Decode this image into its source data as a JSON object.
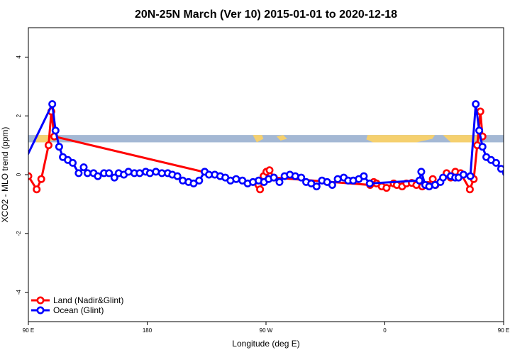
{
  "chart_data": {
    "type": "line",
    "title": "20N-25N March (Ver 10)   2015-01-01 to 2020-12-18",
    "xlabel": "Longitude (deg E)",
    "ylabel": "XCO2 - MLO trend (ppm)",
    "xlim": [
      90,
      450
    ],
    "ylim": [
      -5,
      5
    ],
    "x_ticks": [
      {
        "value": 90,
        "label": "90 E"
      },
      {
        "value": 180,
        "label": "180"
      },
      {
        "value": 270,
        "label": "90 W"
      },
      {
        "value": 360,
        "label": "0"
      },
      {
        "value": 450,
        "label": "90 E"
      },
      {
        "value": 540,
        "label": "180"
      }
    ],
    "y_ticks": [
      {
        "value": -4,
        "label": "-4"
      },
      {
        "value": -2,
        "label": "-2"
      },
      {
        "value": 0,
        "label": "0"
      },
      {
        "value": 2,
        "label": "2"
      },
      {
        "value": 4,
        "label": "4"
      }
    ],
    "legend_position": "bottom-left",
    "map_strip": {
      "y_range": [
        1.1,
        1.35
      ],
      "ocean_color": "#a4b8d4",
      "land_color": "#f5d06f"
    },
    "series": [
      {
        "name": "Land (Nadir&Glint)",
        "color": "#ff0000",
        "points": [
          [
            90.0,
            -0.05
          ],
          [
            96.3,
            -0.5
          ],
          [
            99.8,
            -0.15
          ],
          [
            105.3,
            1.0
          ],
          [
            107.4,
            2.15
          ],
          [
            109.6,
            1.3
          ],
          [
            264.3,
            -0.35
          ],
          [
            265.5,
            -0.5
          ],
          [
            268.2,
            -0.05
          ],
          [
            270.3,
            0.1
          ],
          [
            272.7,
            0.15
          ],
          [
            276.0,
            -0.1
          ],
          [
            348.9,
            -0.35
          ],
          [
            351.6,
            -0.25
          ],
          [
            353.7,
            -0.3
          ],
          [
            357.7,
            -0.4
          ],
          [
            361.3,
            -0.45
          ],
          [
            366.7,
            -0.3
          ],
          [
            369.1,
            -0.35
          ],
          [
            373.1,
            -0.4
          ],
          [
            376.4,
            -0.3
          ],
          [
            380.4,
            -0.28
          ],
          [
            383.9,
            -0.35
          ],
          [
            388.3,
            -0.4
          ],
          [
            392.6,
            -0.35
          ],
          [
            396.3,
            -0.15
          ],
          [
            398.4,
            -0.35
          ],
          [
            406.8,
            0.05
          ],
          [
            409.9,
            -0.1
          ],
          [
            413.4,
            0.1
          ],
          [
            417.4,
            0.05
          ],
          [
            424.4,
            -0.5
          ],
          [
            427.4,
            -0.15
          ],
          [
            430.0,
            1.0
          ],
          [
            432.4,
            2.15
          ],
          [
            434.0,
            1.3
          ]
        ]
      },
      {
        "name": "Ocean (Glint)",
        "color": "#0000ff",
        "points": [
          [
            81.1,
            -0.1
          ],
          [
            108.1,
            2.4
          ],
          [
            110.6,
            1.5
          ],
          [
            113.3,
            0.95
          ],
          [
            116.1,
            0.6
          ],
          [
            119.9,
            0.5
          ],
          [
            123.6,
            0.4
          ],
          [
            128.1,
            0.05
          ],
          [
            131.9,
            0.25
          ],
          [
            134.8,
            0.05
          ],
          [
            139.4,
            0.05
          ],
          [
            142.6,
            -0.05
          ],
          [
            147.3,
            0.05
          ],
          [
            151.1,
            0.05
          ],
          [
            155.2,
            -0.1
          ],
          [
            158.4,
            0.05
          ],
          [
            162.3,
            0.0
          ],
          [
            165.8,
            0.1
          ],
          [
            170.3,
            0.05
          ],
          [
            174.3,
            0.05
          ],
          [
            178.9,
            0.1
          ],
          [
            182.1,
            0.05
          ],
          [
            186.6,
            0.1
          ],
          [
            191.1,
            0.05
          ],
          [
            195.6,
            0.05
          ],
          [
            199.0,
            0.0
          ],
          [
            202.9,
            -0.05
          ],
          [
            206.9,
            -0.2
          ],
          [
            211.3,
            -0.25
          ],
          [
            215.2,
            -0.3
          ],
          [
            219.4,
            -0.2
          ],
          [
            223.6,
            0.1
          ],
          [
            226.8,
            0.0
          ],
          [
            231.2,
            0.0
          ],
          [
            235.3,
            -0.05
          ],
          [
            239.2,
            -0.1
          ],
          [
            243.1,
            -0.2
          ],
          [
            247.4,
            -0.15
          ],
          [
            252.1,
            -0.2
          ],
          [
            256.1,
            -0.3
          ],
          [
            260.1,
            -0.25
          ],
          [
            264.4,
            -0.2
          ],
          [
            268.5,
            -0.25
          ],
          [
            272.0,
            -0.15
          ],
          [
            275.9,
            -0.1
          ],
          [
            280.2,
            -0.25
          ],
          [
            284.1,
            -0.05
          ],
          [
            288.1,
            0.0
          ],
          [
            292.2,
            -0.05
          ],
          [
            296.7,
            -0.1
          ],
          [
            300.4,
            -0.25
          ],
          [
            304.3,
            -0.3
          ],
          [
            308.3,
            -0.4
          ],
          [
            312.4,
            -0.2
          ],
          [
            316.3,
            -0.25
          ],
          [
            320.2,
            -0.35
          ],
          [
            324.3,
            -0.15
          ],
          [
            328.9,
            -0.1
          ],
          [
            332.2,
            -0.2
          ],
          [
            336.1,
            -0.2
          ],
          [
            340.3,
            -0.15
          ],
          [
            344.1,
            -0.05
          ],
          [
            348.6,
            -0.3
          ],
          [
            386.2,
            -0.2
          ],
          [
            387.6,
            0.1
          ],
          [
            390.6,
            -0.35
          ],
          [
            393.6,
            -0.4
          ],
          [
            398.1,
            -0.35
          ],
          [
            402.1,
            -0.25
          ],
          [
            404.1,
            -0.1
          ],
          [
            409.9,
            -0.05
          ],
          [
            413.3,
            -0.1
          ],
          [
            415.8,
            -0.1
          ],
          [
            419.6,
            0.0
          ],
          [
            424.8,
            -0.05
          ],
          [
            428.9,
            2.4
          ],
          [
            431.5,
            1.5
          ],
          [
            434.0,
            0.95
          ],
          [
            436.9,
            0.6
          ],
          [
            440.5,
            0.5
          ],
          [
            444.3,
            0.4
          ],
          [
            448.1,
            0.2
          ],
          [
            451.9,
            0.05
          ],
          [
            455.6,
            0.25
          ],
          [
            459.5,
            0.05
          ],
          [
            463.5,
            0.05
          ],
          [
            467.2,
            -0.05
          ],
          [
            471.0,
            0.05
          ],
          [
            475.0,
            0.05
          ],
          [
            478.8,
            -0.1
          ]
        ]
      }
    ]
  }
}
